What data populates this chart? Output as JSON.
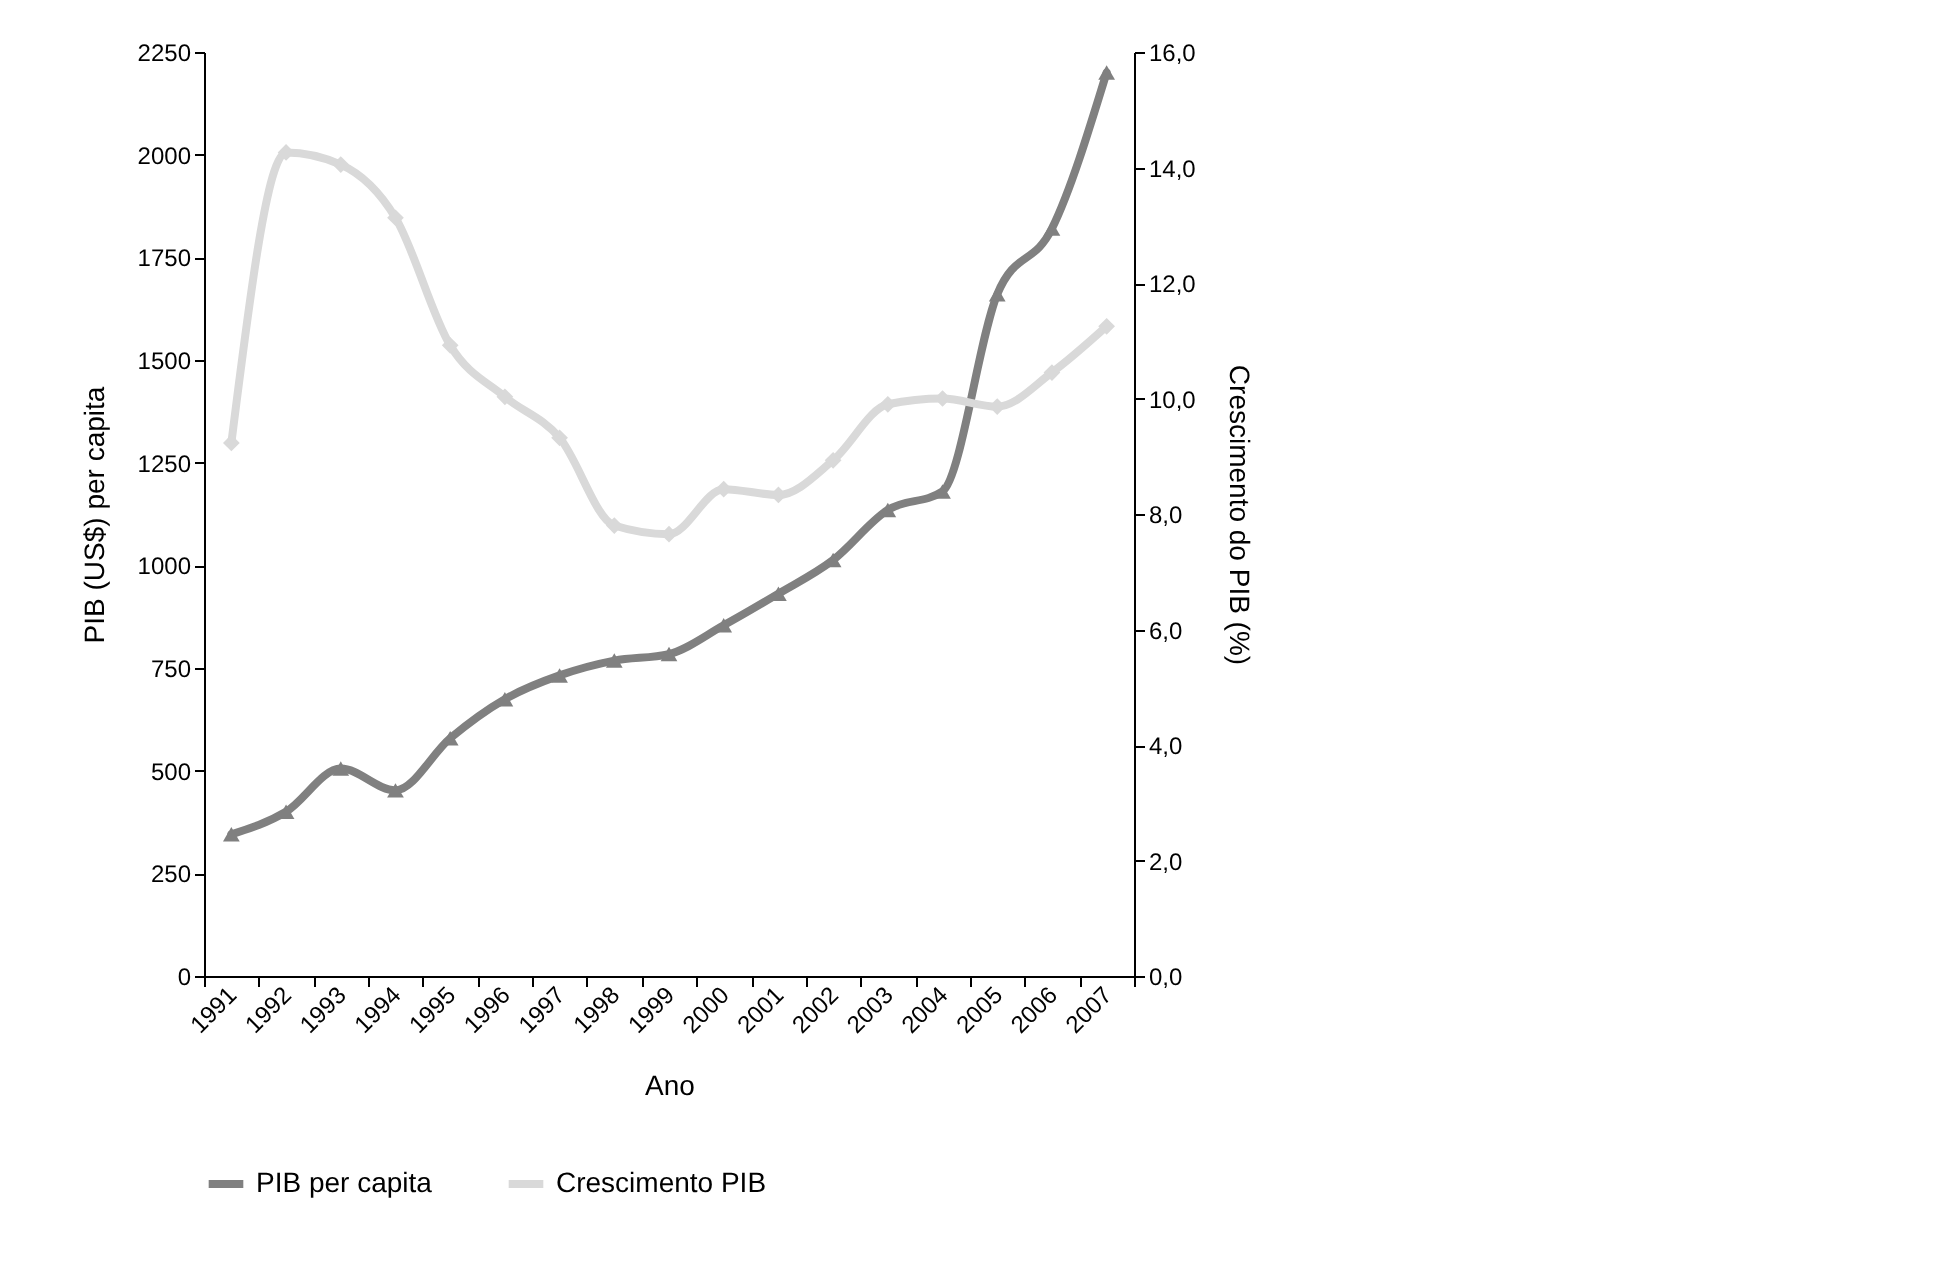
{
  "chart_data": {
    "type": "line",
    "xlabel": "Ano",
    "ylabel": "PIB (US$) per capita",
    "y2label": "Crescimento do PIB (%)",
    "categories": [
      "1991",
      "1992",
      "1993",
      "1994",
      "1995",
      "1996",
      "1997",
      "1998",
      "1999",
      "2000",
      "2001",
      "2002",
      "2003",
      "2004",
      "2005",
      "2006",
      "2007"
    ],
    "series": [
      {
        "name": "PIB per capita",
        "color": "#808080",
        "marker": "triangle",
        "values": [
          345,
          400,
          505,
          452,
          579,
          674,
          732,
          768,
          784,
          854,
          931,
          1013,
          1135,
          1180,
          1660,
          1820,
          2200
        ]
      },
      {
        "name": "Crescimento PIB",
        "color": "#d9d9d9",
        "marker": "diamond",
        "axis": "y2",
        "values": [
          9.23,
          14.26,
          14.05,
          13.13,
          10.92,
          10.03,
          9.32,
          7.8,
          7.65,
          8.43,
          8.33,
          8.93,
          9.9,
          10.0,
          9.86,
          10.45,
          11.25
        ]
      }
    ],
    "ylim": [
      0,
      2250
    ],
    "yticks": [
      0,
      250,
      500,
      750,
      1000,
      1250,
      1500,
      1750,
      2000,
      2250
    ],
    "y2lim": [
      0,
      16
    ],
    "y2ticks": [
      {
        "value": 0,
        "label": "0,0"
      },
      {
        "value": 2,
        "label": "2,0"
      },
      {
        "value": 4,
        "label": "4,0"
      },
      {
        "value": 6,
        "label": "6,0"
      },
      {
        "value": 8,
        "label": "8,0"
      },
      {
        "value": 10,
        "label": "10,0"
      },
      {
        "value": 12,
        "label": "12,0"
      },
      {
        "value": 14,
        "label": "14,0"
      },
      {
        "value": 16,
        "label": "16,0"
      }
    ],
    "grid": false,
    "legend": "bottom",
    "line_style": "solid"
  }
}
